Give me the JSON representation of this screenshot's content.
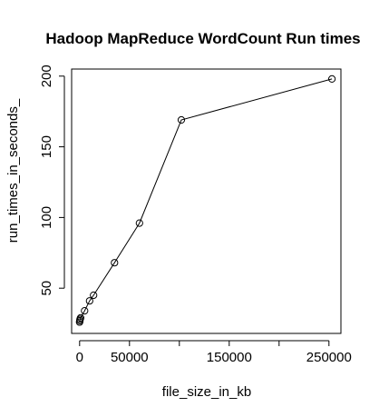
{
  "chart_data": {
    "type": "line",
    "title": "Hadoop MapReduce WordCount Run times",
    "xlabel": "file_size_in_kb",
    "ylabel": "run_times_in_seconds_",
    "xlim": [
      -8000,
      262000
    ],
    "ylim": [
      18,
      205
    ],
    "x_ticks": [
      0,
      50000,
      100000,
      150000,
      200000,
      250000
    ],
    "x_tick_labels": [
      "0",
      "50000",
      "",
      "150000",
      "",
      "250000"
    ],
    "y_ticks": [
      50,
      100,
      150,
      200
    ],
    "y_tick_labels": [
      "50",
      "100",
      "150",
      "200"
    ],
    "grid": false,
    "series": [
      {
        "marker": "open-circle",
        "points": [
          {
            "x": 0,
            "y": 26
          },
          {
            "x": 200,
            "y": 27
          },
          {
            "x": 500,
            "y": 28
          },
          {
            "x": 1000,
            "y": 29
          },
          {
            "x": 5000,
            "y": 34
          },
          {
            "x": 10000,
            "y": 41
          },
          {
            "x": 14000,
            "y": 45
          },
          {
            "x": 35000,
            "y": 68
          },
          {
            "x": 60000,
            "y": 96
          },
          {
            "x": 102000,
            "y": 169
          },
          {
            "x": 253000,
            "y": 198
          }
        ]
      }
    ]
  }
}
